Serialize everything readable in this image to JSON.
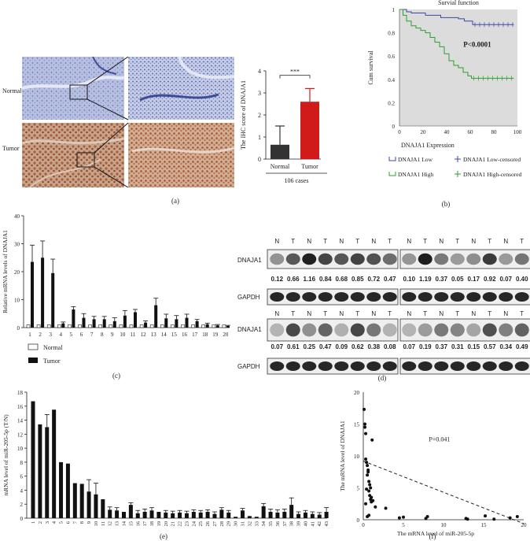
{
  "panels": {
    "a": {
      "label": "(a)",
      "row_labels": [
        "Normal",
        "Tumor"
      ],
      "chart_data": {
        "type": "bar",
        "categories": [
          "Normal",
          "Tumor"
        ],
        "values": [
          0.65,
          2.6
        ],
        "errors": [
          0.85,
          0.6
        ],
        "colors": [
          "#333333",
          "#d11a1a"
        ],
        "ylabel": "The IHC score of DNAJA1",
        "ylim": [
          0,
          4
        ],
        "yticks": [
          0,
          1,
          2,
          3,
          4
        ],
        "xlabel": "106 cases",
        "significance": "***"
      }
    },
    "b": {
      "label": "(b)",
      "chart_data": {
        "type": "line",
        "title": "Survial function",
        "ylabel": "Cum survival",
        "xlim": [
          0,
          100
        ],
        "ylim": [
          0,
          1
        ],
        "xticks": [
          0,
          20,
          40,
          60,
          80,
          100
        ],
        "yticks": [
          0,
          0.2,
          0.4,
          0.6,
          0.8,
          1
        ],
        "annotation": "P<0.0001",
        "legend_title": "DNAJA1 Expression",
        "series": [
          {
            "name": "DNAJA1 Low",
            "censored_name": "DNAJA1 Low-censored",
            "color": "#3a4aa0",
            "x": [
              0,
              6,
              10,
              22,
              35,
              50,
              55,
              62,
              97
            ],
            "y": [
              1,
              0.98,
              0.97,
              0.95,
              0.93,
              0.92,
              0.9,
              0.87,
              0.87
            ]
          },
          {
            "name": "DNAJA1 High",
            "censored_name": "DNAJA1 High-censored",
            "color": "#2ca02c",
            "x": [
              0,
              3,
              6,
              10,
              14,
              18,
              22,
              26,
              30,
              34,
              38,
              42,
              46,
              50,
              54,
              58,
              61,
              97
            ],
            "y": [
              1,
              0.95,
              0.9,
              0.86,
              0.84,
              0.82,
              0.8,
              0.76,
              0.72,
              0.68,
              0.62,
              0.56,
              0.52,
              0.5,
              0.46,
              0.43,
              0.41,
              0.41
            ]
          }
        ]
      }
    },
    "c": {
      "label": "(c)",
      "chart_data": {
        "type": "bar",
        "ylabel": "Relative mRNA levels of DNAJA1",
        "ylim": [
          0,
          40
        ],
        "yticks": [
          0,
          10,
          20,
          30,
          40
        ],
        "categories": [
          "1",
          "2",
          "3",
          "4",
          "5",
          "6",
          "7",
          "8",
          "9",
          "10",
          "11",
          "12",
          "13",
          "14",
          "15",
          "16",
          "17",
          "18",
          "19",
          "20"
        ],
        "series": [
          {
            "name": "Normal",
            "values": [
              1,
              1,
              1,
              1,
              1,
              1,
              1,
              1,
              1,
              1,
              1,
              1,
              1,
              1,
              1,
              1,
              1,
              1,
              1,
              1
            ],
            "errors": [
              0,
              0,
              0,
              0,
              0,
              0,
              0,
              0,
              0,
              0,
              0,
              0,
              0,
              0,
              0,
              0,
              0,
              0,
              0,
              0
            ]
          },
          {
            "name": "Tumor",
            "values": [
              23.5,
              25,
              19.5,
              1.5,
              6.5,
              3.5,
              3,
              3,
              2.3,
              4.3,
              5.5,
              1.8,
              8,
              3.3,
              3,
              3.5,
              2.3,
              1.2,
              0.8,
              0.6
            ],
            "errors": [
              6,
              6,
              5,
              0.5,
              1,
              1.5,
              1,
              1,
              1.2,
              1.8,
              1,
              0.6,
              2.5,
              1.5,
              1.3,
              1.3,
              0.6,
              0.4,
              0.3,
              0.2
            ]
          }
        ]
      }
    },
    "d": {
      "label": "(d)",
      "row1": {
        "headers": [
          "N",
          "T",
          "N",
          "T",
          "N",
          "T",
          "N",
          "T",
          "N",
          "T",
          "N",
          "T",
          "N",
          "T",
          "N",
          "T"
        ],
        "target_label": "DNAJA1",
        "values": [
          "0.12",
          "0.66",
          "1.16",
          "0.84",
          "0.68",
          "0.85",
          "0.72",
          "0.47",
          "0.10",
          "1.19",
          "0.37",
          "0.05",
          "0.17",
          "0.92",
          "0.07",
          "0.40"
        ],
        "control_label": "GAPDH"
      },
      "row2": {
        "headers": [
          "N",
          "T",
          "N",
          "T",
          "N",
          "T",
          "N",
          "T",
          "N",
          "T",
          "N",
          "T",
          "N",
          "T",
          "N",
          "T"
        ],
        "target_label": "DNAJA1",
        "values": [
          "0.07",
          "0.61",
          "0.25",
          "0.47",
          "0.09",
          "0.62",
          "0.38",
          "0.08",
          "0.07",
          "0.19",
          "0.37",
          "0.31",
          "0.15",
          "0.57",
          "0.34",
          "0.49"
        ],
        "control_label": "GAPDH"
      }
    },
    "e": {
      "label": "(e)",
      "chart_data": {
        "type": "bar",
        "ylabel": "mRNA level of miR-205-5p (T/N)",
        "ylim": [
          0,
          18
        ],
        "yticks": [
          0,
          2,
          4,
          6,
          8,
          10,
          12,
          14,
          16,
          18
        ],
        "categories": [
          "1",
          "2",
          "3",
          "4",
          "5",
          "6",
          "7",
          "8",
          "9",
          "10",
          "11",
          "12",
          "13",
          "14",
          "15",
          "16",
          "17",
          "18",
          "19",
          "20",
          "21",
          "22",
          "23",
          "24",
          "25",
          "26",
          "27",
          "28",
          "29",
          "30",
          "31",
          "32",
          "33",
          "34",
          "35",
          "36",
          "37",
          "38",
          "39",
          "40",
          "41",
          "42",
          "43"
        ],
        "values": [
          16.7,
          13.4,
          13,
          15.5,
          8,
          7.8,
          5,
          4.9,
          3.8,
          3.4,
          2.7,
          1.2,
          1.1,
          0.9,
          1.9,
          0.7,
          0.9,
          1.1,
          0.9,
          0.8,
          0.7,
          0.8,
          0.7,
          0.9,
          0.8,
          0.9,
          0.6,
          1.2,
          0.8,
          0.2,
          1.1,
          0.3,
          0.2,
          1.7,
          0.9,
          0.8,
          0.9,
          1.9,
          0.6,
          0.8,
          0.6,
          0.5,
          0.9
        ],
        "errors": [
          0,
          0,
          1.8,
          0,
          0,
          0,
          0,
          0,
          1.7,
          1.6,
          0,
          0.4,
          0.4,
          0,
          0.3,
          0.4,
          0.4,
          0.4,
          0,
          0.3,
          0.3,
          0.3,
          0.3,
          0.3,
          0.3,
          0.3,
          0.3,
          0.3,
          0.3,
          0,
          0.3,
          0,
          0,
          0.4,
          0.4,
          0.4,
          0.4,
          1,
          0.3,
          0.3,
          0.3,
          0.3,
          0.6
        ]
      }
    },
    "f": {
      "label": "(f)",
      "chart_data": {
        "type": "scatter",
        "xlabel": "The mRNA level of miR-205-5p",
        "ylabel": "The mRNA level of DNAJA1",
        "xlim": [
          0,
          20
        ],
        "ylim": [
          0,
          20
        ],
        "xticks": [
          0,
          5,
          10,
          15,
          20
        ],
        "yticks": [
          0,
          5,
          10,
          15,
          20
        ],
        "annotation": "P=0.041",
        "trend": {
          "x": [
            0,
            20
          ],
          "y": [
            9.2,
            -0.6
          ]
        },
        "x": [
          0.1,
          0.2,
          0.3,
          0.4,
          0.5,
          0.6,
          0.7,
          0.8,
          0.9,
          1.0,
          1.1,
          0.3,
          0.5,
          0.7,
          0.9,
          1.2,
          1.5,
          0.2,
          0.4,
          0.6,
          0.8,
          1.0,
          0.5,
          0.7,
          0.3,
          2.8,
          4.5,
          5.0,
          7.8,
          8.0,
          12.8,
          13.0,
          15.2,
          16.3,
          18.3,
          19.2
        ],
        "y": [
          17.3,
          15.0,
          13.5,
          9.0,
          8.5,
          7.5,
          4.5,
          3.8,
          3.2,
          2.8,
          12.5,
          2.5,
          7.0,
          6.0,
          5.0,
          3.0,
          2.0,
          14.5,
          4.8,
          7.8,
          5.5,
          3.5,
          0.5,
          0.7,
          9.5,
          1.8,
          0.3,
          0.4,
          0.2,
          0.5,
          0.2,
          0.1,
          0.6,
          0.1,
          0.3,
          0.5
        ]
      }
    }
  }
}
